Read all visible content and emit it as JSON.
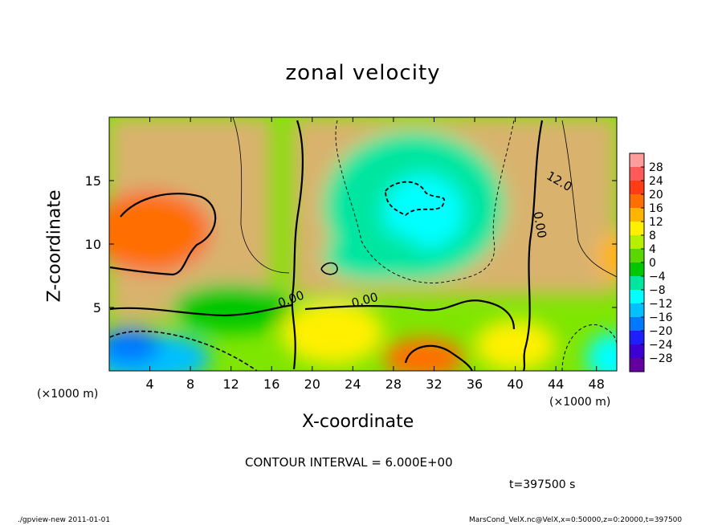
{
  "chart_data": {
    "type": "heatmap",
    "title": "zonal velocity",
    "xlabel": "X-coordinate",
    "ylabel": "Z-coordinate",
    "x_unit": "(×1000 m)",
    "y_unit": "(×1000 m)",
    "xlim": [
      0,
      50
    ],
    "ylim": [
      0,
      20
    ],
    "x_ticks": [
      "4",
      "8",
      "12",
      "16",
      "20",
      "24",
      "28",
      "32",
      "36",
      "40",
      "44",
      "48"
    ],
    "y_ticks": [
      "5",
      "10",
      "15"
    ],
    "contour_labels": [
      "12.0",
      "0.00",
      "0.00",
      "0.00"
    ],
    "colorbar": {
      "labels": [
        "28",
        "24",
        "20",
        "16",
        "12",
        "8",
        "4",
        "0",
        "−4",
        "−8",
        "−12",
        "−16",
        "−20",
        "−24",
        "−28"
      ],
      "colors": [
        "#ff9c9c",
        "#ff5a5a",
        "#ff3c14",
        "#ff6e00",
        "#ffb400",
        "#fff000",
        "#b4f000",
        "#5ad700",
        "#00c800",
        "#00e6a0",
        "#00ffff",
        "#00c0ff",
        "#0078ff",
        "#1e1eff",
        "#3c00d0",
        "#6400a0"
      ]
    },
    "features": [
      {
        "x": 5,
        "z": 9.5,
        "value": 16
      },
      {
        "x": 31,
        "z": 13,
        "value": -11
      },
      {
        "x": 31,
        "z": 1,
        "value": 16
      },
      {
        "x": 4,
        "z": 1,
        "value": -14
      },
      {
        "x": 50,
        "z": 9,
        "value": 14
      },
      {
        "x": 50,
        "z": 1,
        "value": -10
      }
    ],
    "contour_interval_text": "CONTOUR INTERVAL = 6.000E+00",
    "time_text": "t=397500 s"
  },
  "footer": {
    "left": "./gpview-new   2011-01-01",
    "right": "MarsCond_VelX.nc@VelX,x=0:50000,z=0:20000,t=397500"
  }
}
